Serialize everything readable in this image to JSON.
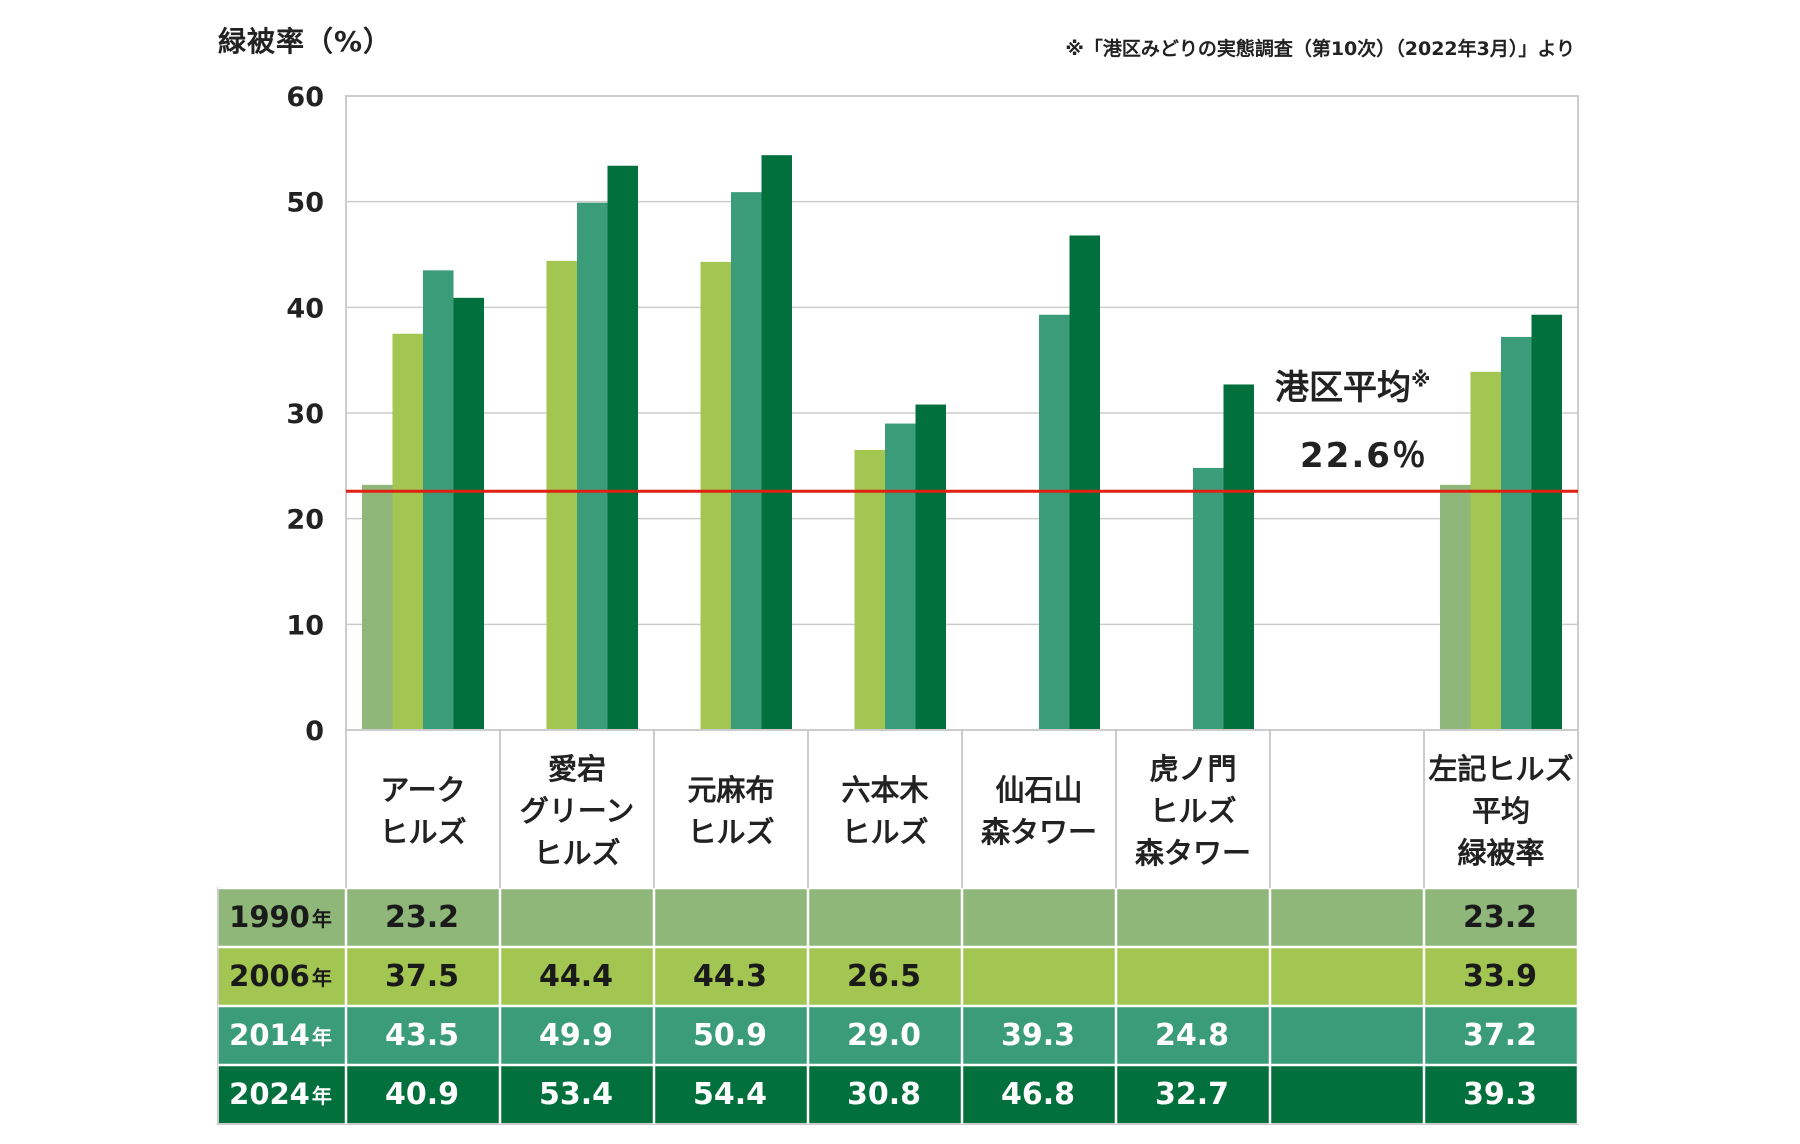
{
  "header": {
    "ylabel": "緑被率（%）",
    "source": "※「港区みどりの実態調査（第10次）（2022年3月）」より"
  },
  "average": {
    "label": "港区平均",
    "mark": "※",
    "value_text": "22.6％"
  },
  "colors": {
    "y1990": "#8fb77a",
    "y2006": "#a3c552",
    "y2014": "#3a9c78",
    "y2024": "#02703c",
    "avg_line": "#e02010",
    "grid": "#cccccc"
  },
  "chart_data": {
    "type": "bar",
    "categories": [
      "アーク\nヒルズ",
      "愛宕\nグリーン\nヒルズ",
      "元麻布\nヒルズ",
      "六本木\nヒルズ",
      "仙石山\n森タワー",
      "虎ノ門\nヒルズ\n森タワー",
      "",
      "左記ヒルズ\n平均\n緑被率"
    ],
    "series": [
      {
        "name": "1990",
        "values": [
          23.2,
          null,
          null,
          null,
          null,
          null,
          null,
          23.2
        ]
      },
      {
        "name": "2006",
        "values": [
          37.5,
          44.4,
          44.3,
          26.5,
          null,
          null,
          null,
          33.9
        ]
      },
      {
        "name": "2014",
        "values": [
          43.5,
          49.9,
          50.9,
          29.0,
          39.3,
          24.8,
          null,
          37.2
        ]
      },
      {
        "name": "2024",
        "values": [
          40.9,
          53.4,
          54.4,
          30.8,
          46.8,
          32.7,
          null,
          39.3
        ]
      }
    ],
    "year_suffix": "年",
    "reference_line": 22.6,
    "ylim": [
      0,
      60
    ],
    "yticks": [
      "0",
      "10",
      "20",
      "30",
      "40",
      "50",
      "60"
    ],
    "grid": true
  }
}
